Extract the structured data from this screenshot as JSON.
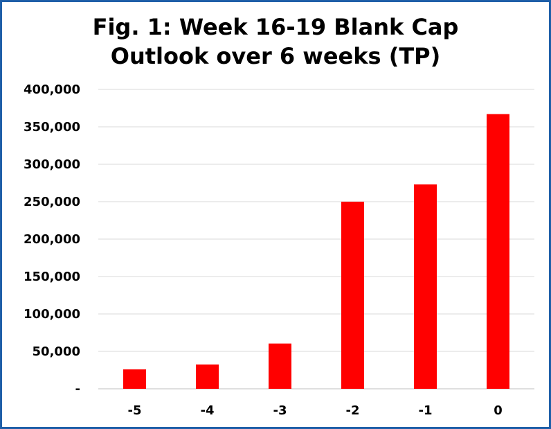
{
  "chart_data": {
    "type": "bar",
    "title_lines": [
      "Fig. 1: Week 16-19 Blank Cap",
      "Outlook over 6 weeks (TP)"
    ],
    "categories": [
      "-5",
      "-4",
      "-3",
      "-2",
      "-1",
      "0"
    ],
    "values": [
      26000,
      32500,
      60500,
      250000,
      273000,
      367000
    ],
    "ylim": [
      0,
      400000
    ],
    "yticks": [
      0,
      50000,
      100000,
      150000,
      200000,
      250000,
      300000,
      350000,
      400000
    ],
    "ytick_labels": [
      "-",
      "50,000",
      "100,000",
      "150,000",
      "200,000",
      "250,000",
      "300,000",
      "350,000",
      "400,000"
    ],
    "xlabel": "",
    "ylabel": "",
    "grid": true,
    "legend": "none",
    "colors": {
      "bar": "#ff0000",
      "grid": "#d9d9d9",
      "border": "#1f5fa8"
    }
  }
}
